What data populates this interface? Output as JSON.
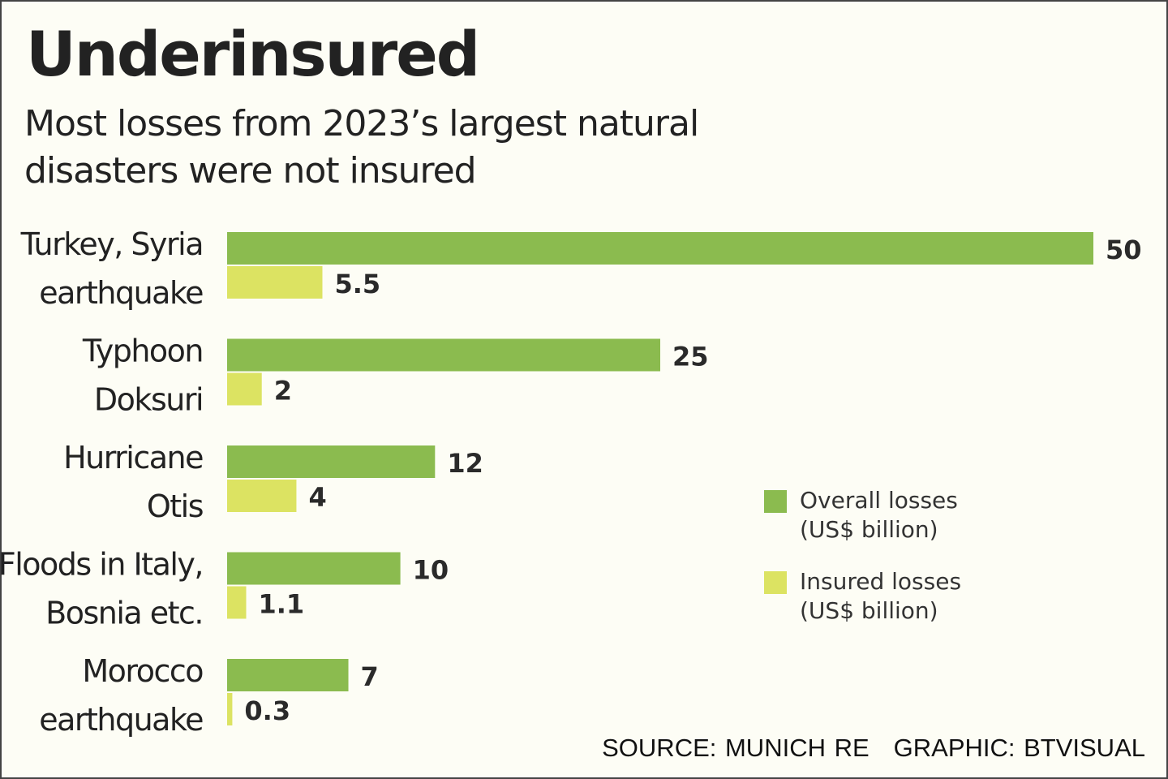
{
  "chart_data": {
    "type": "bar",
    "orientation": "horizontal",
    "title": "Underinsured",
    "subtitle": "Most losses from 2023’s largest natural disasters were not insured",
    "categories": [
      [
        "Turkey, Syria",
        "earthquake"
      ],
      [
        "Typhoon",
        "Doksuri"
      ],
      [
        "Hurricane",
        "Otis"
      ],
      [
        "Floods in Italy,",
        "Bosnia etc."
      ],
      [
        "Morocco",
        "earthquake"
      ]
    ],
    "series": [
      {
        "name": "Overall losses (US$ billion)",
        "legend_lines": [
          "Overall losses",
          "(US$ billion)"
        ],
        "color": "#8bbb4f",
        "values": [
          50,
          25,
          12,
          10,
          7
        ],
        "labels": [
          "50",
          "25",
          "12",
          "10",
          "7"
        ]
      },
      {
        "name": "Insured losses (US$ billion)",
        "legend_lines": [
          "Insured losses",
          "(US$ billion)"
        ],
        "color": "#dce362",
        "values": [
          5.5,
          2,
          4,
          1.1,
          0.3
        ],
        "labels": [
          "5.5",
          "2",
          "4",
          "1.1",
          "0.3"
        ]
      }
    ],
    "xlim": [
      0,
      50
    ],
    "grid": false,
    "legend_position": "right-middle",
    "data_labels": true
  },
  "footer": {
    "source": "SOURCE: MUNICH RE",
    "graphic": "GRAPHIC: BTVISUAL"
  }
}
